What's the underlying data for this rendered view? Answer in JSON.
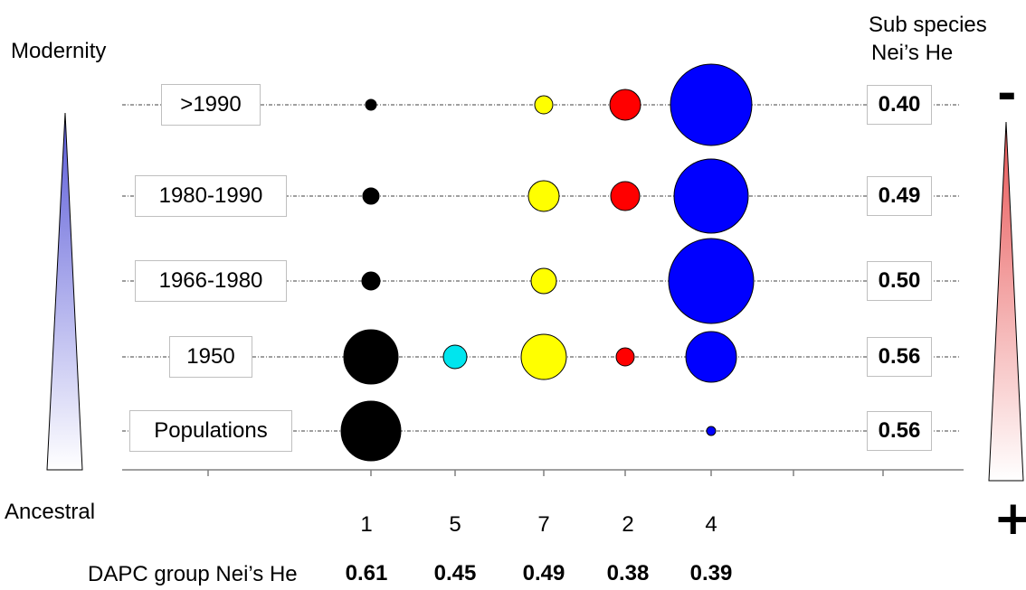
{
  "labels": {
    "modernity": "Modernity",
    "ancestral": "Ancestral",
    "subspecies_line1": "Sub species",
    "subspecies_line2": "Nei’s He",
    "dapc_label": "DAPC group Nei’s He",
    "minus": "-",
    "plus": "+"
  },
  "colors": {
    "group_1": "#000000",
    "group_5": "#00e5ee",
    "group_7": "#ffff00",
    "group_2": "#ff0000",
    "group_4": "#0000ff",
    "modernity_gradient": [
      "#5a5ad8",
      "#ffffff"
    ],
    "he_gradient": [
      "#e85555",
      "#ffffff"
    ]
  },
  "chart_data": {
    "type": "scatter",
    "subtype": "bubble",
    "categories": [
      "1",
      "5",
      "7",
      "2",
      "4"
    ],
    "category_he": [
      "0.61",
      "0.45",
      "0.49",
      "0.38",
      "0.39"
    ],
    "rows": [
      {
        "label": ">1990",
        "he": "0.40",
        "sizes": [
          6,
          0,
          10,
          17,
          45
        ]
      },
      {
        "label": "1980-1990",
        "he": "0.49",
        "sizes": [
          9,
          0,
          17,
          16,
          41
        ]
      },
      {
        "label": "1966-1980",
        "he": "0.50",
        "sizes": [
          10,
          0,
          14,
          0,
          47
        ]
      },
      {
        "label": "1950",
        "he": "0.56",
        "sizes": [
          30,
          13,
          25,
          10,
          28
        ]
      },
      {
        "label": "Populations",
        "he": "0.56",
        "sizes": [
          33,
          0,
          0,
          0,
          5
        ]
      }
    ]
  }
}
